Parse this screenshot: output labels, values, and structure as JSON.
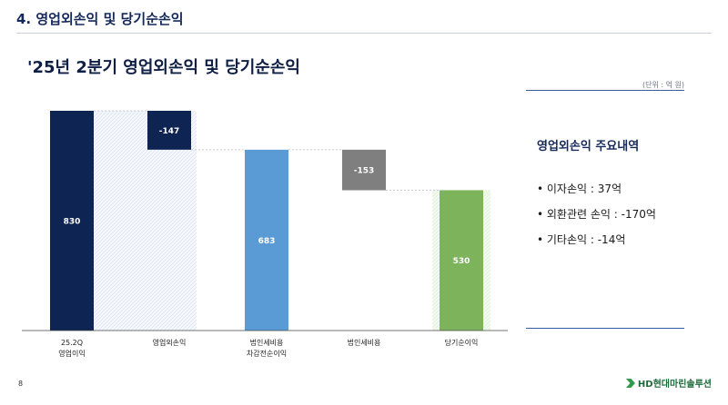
{
  "header": {
    "title": "4. 영업외손익 및 당기순손익"
  },
  "main_title": "'25년 2분기 영업외손익 및 당기순손익",
  "unit_label": "(단위 : 억 원)",
  "side_panel": {
    "title": "영업외손익 주요내역",
    "items": [
      "• 이자손익 : 37억",
      "• 외환관련 손익 : -170억",
      "• 기타손익 : -14억"
    ]
  },
  "page_number": "8",
  "logo_text": "HD현대마린솔루션",
  "chart_data": {
    "type": "bar",
    "subtype": "waterfall",
    "categories": [
      [
        "25.2Q",
        "영업이익"
      ],
      [
        "영업외손익"
      ],
      [
        "법인세비용",
        "차감전순이익"
      ],
      [
        "법인세비용"
      ],
      [
        "당기순이익"
      ]
    ],
    "values": [
      830,
      -147,
      683,
      -153,
      530
    ],
    "value_labels": [
      "830",
      "-147",
      "683",
      "-153",
      "530"
    ],
    "ylim": [
      0,
      830
    ],
    "colors": [
      "#0e2452",
      "#0e2452",
      "#5b9bd5",
      "#7f7f7f",
      "#7cb35b"
    ]
  }
}
